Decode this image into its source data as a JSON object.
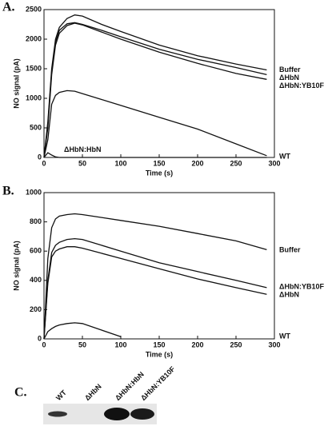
{
  "panel_labels": [
    "A.",
    "B.",
    "C."
  ],
  "chart_data": [
    {
      "type": "line",
      "xlabel": "Time (s)",
      "ylabel": "NO signal (pA)",
      "x": [
        0,
        5,
        10,
        15,
        20,
        30,
        40,
        50,
        75,
        100,
        150,
        200,
        250,
        290
      ],
      "xlim": [
        0,
        300
      ],
      "xticks": [
        0,
        50,
        100,
        150,
        200,
        250,
        300
      ],
      "ylim": [
        0,
        2500
      ],
      "yticks": [
        0,
        500,
        1000,
        1500,
        2000,
        2500
      ],
      "series": [
        {
          "name": "Buffer",
          "color": "#111111",
          "values": [
            0,
            600,
            1500,
            2000,
            2200,
            2350,
            2410,
            2390,
            2250,
            2130,
            1900,
            1720,
            1580,
            1480
          ]
        },
        {
          "name": "ΔHbN",
          "color": "#111111",
          "values": [
            0,
            550,
            1450,
            1950,
            2150,
            2260,
            2280,
            2250,
            2150,
            2040,
            1830,
            1660,
            1520,
            1400
          ]
        },
        {
          "name": "ΔHbN:YB10F",
          "color": "#111111",
          "values": [
            0,
            500,
            1400,
            1900,
            2100,
            2230,
            2270,
            2240,
            2120,
            2000,
            1780,
            1590,
            1420,
            1320
          ]
        },
        {
          "name": "ΔHbN:HbN",
          "color": "#111111",
          "values": [
            0,
            300,
            900,
            1050,
            1100,
            1130,
            1120,
            1080,
            980,
            880,
            680,
            480,
            230,
            30
          ]
        },
        {
          "name": "WT",
          "color": "#111111",
          "values": [
            0,
            80,
            40,
            10,
            0,
            0,
            0,
            0,
            0,
            0,
            0,
            0,
            0,
            0
          ]
        }
      ]
    },
    {
      "type": "line",
      "xlabel": "Time (s)",
      "ylabel": "NO signal (pA)",
      "x": [
        0,
        5,
        10,
        15,
        20,
        30,
        40,
        50,
        75,
        100,
        150,
        200,
        250,
        290
      ],
      "xlim": [
        0,
        300
      ],
      "xticks": [
        0,
        50,
        100,
        150,
        200,
        250,
        300
      ],
      "ylim": [
        0,
        1000
      ],
      "yticks": [
        0,
        200,
        400,
        600,
        800,
        1000
      ],
      "series": [
        {
          "name": "Buffer",
          "color": "#111111",
          "values": [
            0,
            550,
            760,
            820,
            840,
            850,
            855,
            850,
            830,
            810,
            770,
            720,
            670,
            610
          ]
        },
        {
          "name": "ΔHbN:YB10F",
          "color": "#111111",
          "values": [
            0,
            400,
            590,
            640,
            660,
            680,
            685,
            680,
            640,
            600,
            520,
            460,
            400,
            350
          ]
        },
        {
          "name": "ΔHbN",
          "color": "#111111",
          "values": [
            0,
            380,
            560,
            600,
            615,
            630,
            630,
            620,
            585,
            550,
            480,
            410,
            350,
            305
          ]
        },
        {
          "name": "WT",
          "color": "#111111",
          "values": [
            0,
            50,
            70,
            85,
            95,
            105,
            110,
            105,
            60,
            15,
            null,
            null,
            null,
            null
          ]
        }
      ]
    }
  ],
  "blot": {
    "lanes": [
      "WT",
      "ΔHbN",
      "ΔHbN:HbN",
      "ΔHbN:YB10F"
    ]
  }
}
